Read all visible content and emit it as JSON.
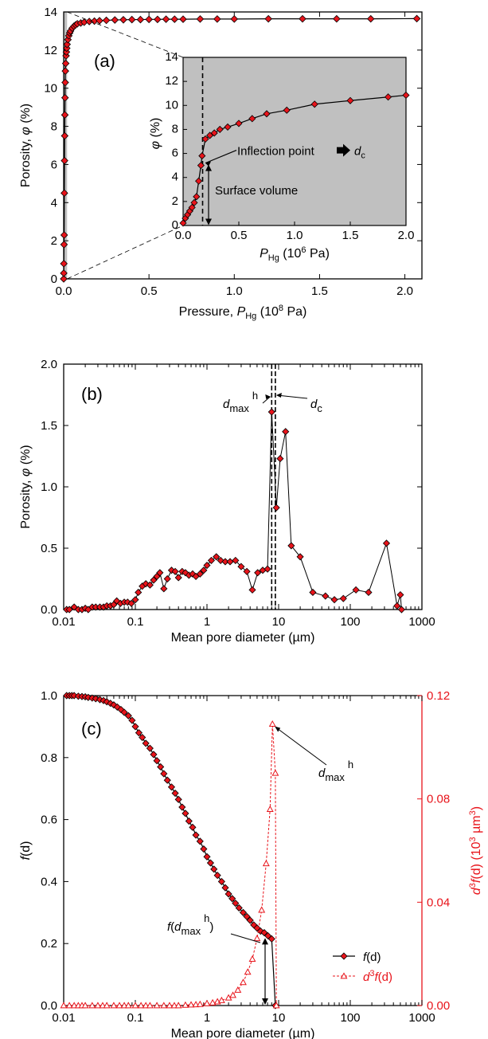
{
  "chart_data": [
    {
      "panel": "(a)",
      "type": "line",
      "xlabel": {
        "main": "Pressure, ",
        "sym": "P",
        "sub": "Hg",
        "unit1": " (10",
        "sup": "8",
        "unit2": " Pa)"
      },
      "ylabel": {
        "main": "Porosity, ",
        "sym": "φ",
        "unit": " (%)"
      },
      "xlim": [
        0,
        2.1
      ],
      "ylim": [
        0,
        14
      ],
      "xticks": [
        0.0,
        0.5,
        1.0,
        1.5,
        2.0
      ],
      "xtick_labels": [
        "0.0",
        "0.5",
        "1.0",
        "1.5",
        "2.0"
      ],
      "yticks": [
        0,
        2,
        4,
        6,
        8,
        10,
        12,
        14
      ],
      "ytick_labels": [
        "0",
        "2",
        "4",
        "6",
        "8",
        "10",
        "12",
        "14"
      ],
      "marker": "diamond",
      "marker_color": "#e8141b",
      "line_color": "#000000",
      "shaded_x_range": [
        0,
        0.02
      ],
      "series": [
        {
          "x": [
            0.0001,
            0.0005,
            0.001,
            0.002,
            0.003,
            0.004,
            0.005,
            0.006,
            0.007,
            0.008,
            0.009,
            0.01,
            0.012,
            0.014,
            0.016,
            0.018,
            0.02,
            0.025,
            0.03,
            0.035,
            0.04,
            0.05,
            0.06,
            0.07,
            0.08,
            0.1,
            0.12,
            0.15,
            0.18,
            0.21,
            0.25,
            0.3,
            0.35,
            0.4,
            0.45,
            0.5,
            0.55,
            0.6,
            0.65,
            0.7,
            0.8,
            0.9,
            1.0,
            1.2,
            1.4,
            1.6,
            1.8,
            2.07
          ],
          "y": [
            0.0,
            0.3,
            0.8,
            1.8,
            2.3,
            4.5,
            6.2,
            7.5,
            8.6,
            9.5,
            10.3,
            10.9,
            11.3,
            11.7,
            11.9,
            12.1,
            12.3,
            12.55,
            12.75,
            12.9,
            13.0,
            13.15,
            13.25,
            13.32,
            13.38,
            13.42,
            13.46,
            13.5,
            13.52,
            13.54,
            13.56,
            13.58,
            13.59,
            13.6,
            13.6,
            13.61,
            13.61,
            13.62,
            13.62,
            13.62,
            13.63,
            13.63,
            13.63,
            13.64,
            13.64,
            13.64,
            13.64,
            13.65
          ]
        }
      ],
      "inset": {
        "xlabel": {
          "sym": "P",
          "sub": "Hg",
          "unit1": " (10",
          "sup": "6",
          "unit2": " Pa)"
        },
        "ylabel": {
          "sym": "φ",
          "unit": " (%)"
        },
        "xlim": [
          0,
          2.0
        ],
        "ylim": [
          0,
          14
        ],
        "xticks": [
          0.0,
          0.5,
          1.0,
          1.5,
          2.0
        ],
        "xtick_labels": [
          "0.0",
          "0.5",
          "1.0",
          "1.5",
          "2.0"
        ],
        "yticks": [
          0,
          2,
          4,
          6,
          8,
          10,
          12,
          14
        ],
        "ytick_labels": [
          "0",
          "2",
          "4",
          "6",
          "8",
          "10",
          "12",
          "14"
        ],
        "background": "#c0c0c0",
        "dashed_x": 0.175,
        "x": [
          0.0,
          0.02,
          0.04,
          0.06,
          0.08,
          0.1,
          0.12,
          0.14,
          0.16,
          0.17,
          0.2,
          0.24,
          0.28,
          0.33,
          0.4,
          0.5,
          0.62,
          0.75,
          0.93,
          1.18,
          1.5,
          1.84,
          2.0
        ],
        "y": [
          0.2,
          0.6,
          0.9,
          1.2,
          1.5,
          1.9,
          2.4,
          3.7,
          5.0,
          5.8,
          7.2,
          7.5,
          7.7,
          8.0,
          8.2,
          8.5,
          8.9,
          9.3,
          9.6,
          10.1,
          10.4,
          10.7,
          10.85
        ],
        "annotations": {
          "inflection_text": "Inflection point",
          "inflection_symbol": "d",
          "inflection_sub": "c",
          "surface_text": "Surface volume"
        }
      }
    },
    {
      "panel": "(b)",
      "type": "line",
      "xscale": "log",
      "xlabel": "Mean pore diameter (µm)",
      "ylabel": {
        "main": "Porosity, ",
        "sym": "φ",
        "unit": " (%)"
      },
      "xlim": [
        0.01,
        1000
      ],
      "ylim": [
        0,
        2.0
      ],
      "xticks": [
        0.01,
        0.1,
        1,
        10,
        100,
        1000
      ],
      "xtick_labels": [
        "0.01",
        "0.1",
        "1",
        "10",
        "100",
        "1000"
      ],
      "yticks": [
        0.0,
        0.5,
        1.0,
        1.5,
        2.0
      ],
      "ytick_labels": [
        "0.0",
        "0.5",
        "1.0",
        "1.5",
        "2.0"
      ],
      "marker": "diamond",
      "marker_color": "#e8141b",
      "dashed_x": [
        8.0,
        9.0
      ],
      "annotations": {
        "dmax_sym": "d",
        "dmax_sub": "max",
        "dmax_sup": "h",
        "dc_sym": "d",
        "dc_sub": "c"
      },
      "series": [
        {
          "x": [
            0.011,
            0.012,
            0.014,
            0.016,
            0.018,
            0.02,
            0.022,
            0.025,
            0.028,
            0.032,
            0.036,
            0.04,
            0.045,
            0.05,
            0.055,
            0.062,
            0.07,
            0.078,
            0.088,
            0.1,
            0.11,
            0.125,
            0.14,
            0.16,
            0.18,
            0.2,
            0.22,
            0.25,
            0.28,
            0.32,
            0.36,
            0.4,
            0.45,
            0.5,
            0.56,
            0.63,
            0.7,
            0.8,
            0.9,
            1.0,
            1.15,
            1.35,
            1.55,
            1.8,
            2.1,
            2.5,
            3.0,
            3.6,
            4.3,
            5.1,
            6.0,
            7.0,
            8.0,
            9.3,
            10.5,
            12.5,
            15,
            20,
            30,
            45,
            60,
            80,
            120,
            180,
            320,
            450,
            500,
            520
          ],
          "y": [
            0.0,
            0.0,
            0.02,
            0.0,
            0.0,
            0.01,
            0.0,
            0.02,
            0.02,
            0.02,
            0.02,
            0.03,
            0.03,
            0.04,
            0.07,
            0.05,
            0.06,
            0.06,
            0.05,
            0.08,
            0.14,
            0.19,
            0.21,
            0.2,
            0.24,
            0.27,
            0.3,
            0.17,
            0.25,
            0.32,
            0.31,
            0.26,
            0.31,
            0.3,
            0.28,
            0.29,
            0.27,
            0.29,
            0.32,
            0.36,
            0.4,
            0.43,
            0.4,
            0.39,
            0.39,
            0.4,
            0.35,
            0.31,
            0.16,
            0.3,
            0.32,
            0.33,
            1.61,
            0.83,
            1.23,
            1.45,
            0.52,
            0.43,
            0.14,
            0.11,
            0.08,
            0.09,
            0.16,
            0.14,
            0.54,
            0.03,
            0.12,
            0.0
          ]
        }
      ]
    },
    {
      "panel": "(c)",
      "type": "line",
      "xscale": "log",
      "xlabel": "Mean pore diameter (µm)",
      "ylabel": {
        "sym": "f",
        "rest": "(d)"
      },
      "ylabel_right": {
        "pre": "d",
        "sup": "3",
        "mid": "f",
        "post": "(d) (10",
        "sup2": "3",
        "unit": " µm",
        "sup3": "3",
        "close": ")"
      },
      "xlim": [
        0.01,
        1000
      ],
      "ylim": [
        0,
        1.0
      ],
      "ylim_right": [
        0,
        0.12
      ],
      "xticks": [
        0.01,
        0.1,
        1,
        10,
        100,
        1000
      ],
      "xtick_labels": [
        "0.01",
        "0.1",
        "1",
        "10",
        "100",
        "1000"
      ],
      "yticks": [
        0.0,
        0.2,
        0.4,
        0.6,
        0.8,
        1.0
      ],
      "ytick_labels": [
        "0.0",
        "0.2",
        "0.4",
        "0.6",
        "0.8",
        "1.0"
      ],
      "yticks_right": [
        0.0,
        0.04,
        0.08,
        0.12
      ],
      "ytick_labels_right": [
        "0.00",
        "0.04",
        "0.08",
        "0.12"
      ],
      "legend": {
        "placement": "lower-right",
        "entries": [
          {
            "pre": "",
            "italic": "f",
            "post": "(d)"
          },
          {
            "pre": "d",
            "sup": "3",
            "italic": "f",
            "post": "(d)"
          }
        ]
      },
      "annotations": {
        "dmax_sym": "d",
        "dmax_sub": "max",
        "dmax_sup": "h",
        "fdmax_pre": "f",
        "fdmax_sym": "(d",
        "fdmax_sub": "max",
        "fdmax_sup": "h",
        "fdmax_close": ")"
      },
      "series": [
        {
          "name": "f(d)",
          "color": "#000000",
          "marker_color": "#e8141b",
          "x": [
            0.011,
            0.012,
            0.013,
            0.014,
            0.016,
            0.018,
            0.02,
            0.022,
            0.025,
            0.028,
            0.032,
            0.036,
            0.04,
            0.045,
            0.05,
            0.056,
            0.063,
            0.07,
            0.08,
            0.09,
            0.1,
            0.112,
            0.125,
            0.14,
            0.16,
            0.18,
            0.2,
            0.225,
            0.25,
            0.28,
            0.32,
            0.36,
            0.4,
            0.45,
            0.5,
            0.56,
            0.63,
            0.7,
            0.8,
            0.9,
            1.0,
            1.12,
            1.25,
            1.4,
            1.6,
            1.8,
            2.0,
            2.25,
            2.5,
            2.8,
            3.2,
            3.6,
            4.0,
            4.5,
            5.0,
            5.6,
            6.3,
            7.1,
            8.0,
            9.0
          ],
          "y": [
            1.0,
            1.0,
            1.0,
            1.0,
            0.998,
            0.997,
            0.996,
            0.994,
            0.992,
            0.99,
            0.987,
            0.984,
            0.98,
            0.975,
            0.97,
            0.963,
            0.955,
            0.946,
            0.935,
            0.92,
            0.9,
            0.88,
            0.865,
            0.846,
            0.83,
            0.81,
            0.79,
            0.77,
            0.748,
            0.727,
            0.705,
            0.685,
            0.665,
            0.64,
            0.62,
            0.595,
            0.575,
            0.55,
            0.53,
            0.505,
            0.48,
            0.46,
            0.44,
            0.42,
            0.4,
            0.38,
            0.36,
            0.345,
            0.33,
            0.315,
            0.3,
            0.287,
            0.275,
            0.26,
            0.25,
            0.24,
            0.235,
            0.225,
            0.215,
            0.0
          ]
        },
        {
          "name": "d3f(d)",
          "color": "#e8141b",
          "axis": "right",
          "x": [
            0.01,
            0.012,
            0.014,
            0.016,
            0.018,
            0.02,
            0.025,
            0.03,
            0.035,
            0.04,
            0.05,
            0.06,
            0.07,
            0.08,
            0.1,
            0.12,
            0.14,
            0.16,
            0.2,
            0.25,
            0.3,
            0.35,
            0.4,
            0.5,
            0.6,
            0.7,
            0.8,
            1.0,
            1.2,
            1.4,
            1.6,
            2.0,
            2.3,
            2.7,
            3.2,
            3.7,
            4.3,
            5.0,
            5.8,
            6.7,
            7.6,
            8.2,
            9.0,
            9.3
          ],
          "y": [
            0,
            0,
            0,
            0,
            0,
            0,
            0,
            0,
            0,
            0,
            0,
            0,
            0,
            0,
            0,
            0,
            0,
            0,
            0,
            0,
            0,
            0,
            0,
            0.0002,
            0.0003,
            0.0004,
            0.0005,
            0.0008,
            0.0011,
            0.0015,
            0.002,
            0.003,
            0.004,
            0.006,
            0.009,
            0.013,
            0.018,
            0.026,
            0.037,
            0.055,
            0.076,
            0.109,
            0.09,
            0.0
          ]
        }
      ]
    }
  ]
}
